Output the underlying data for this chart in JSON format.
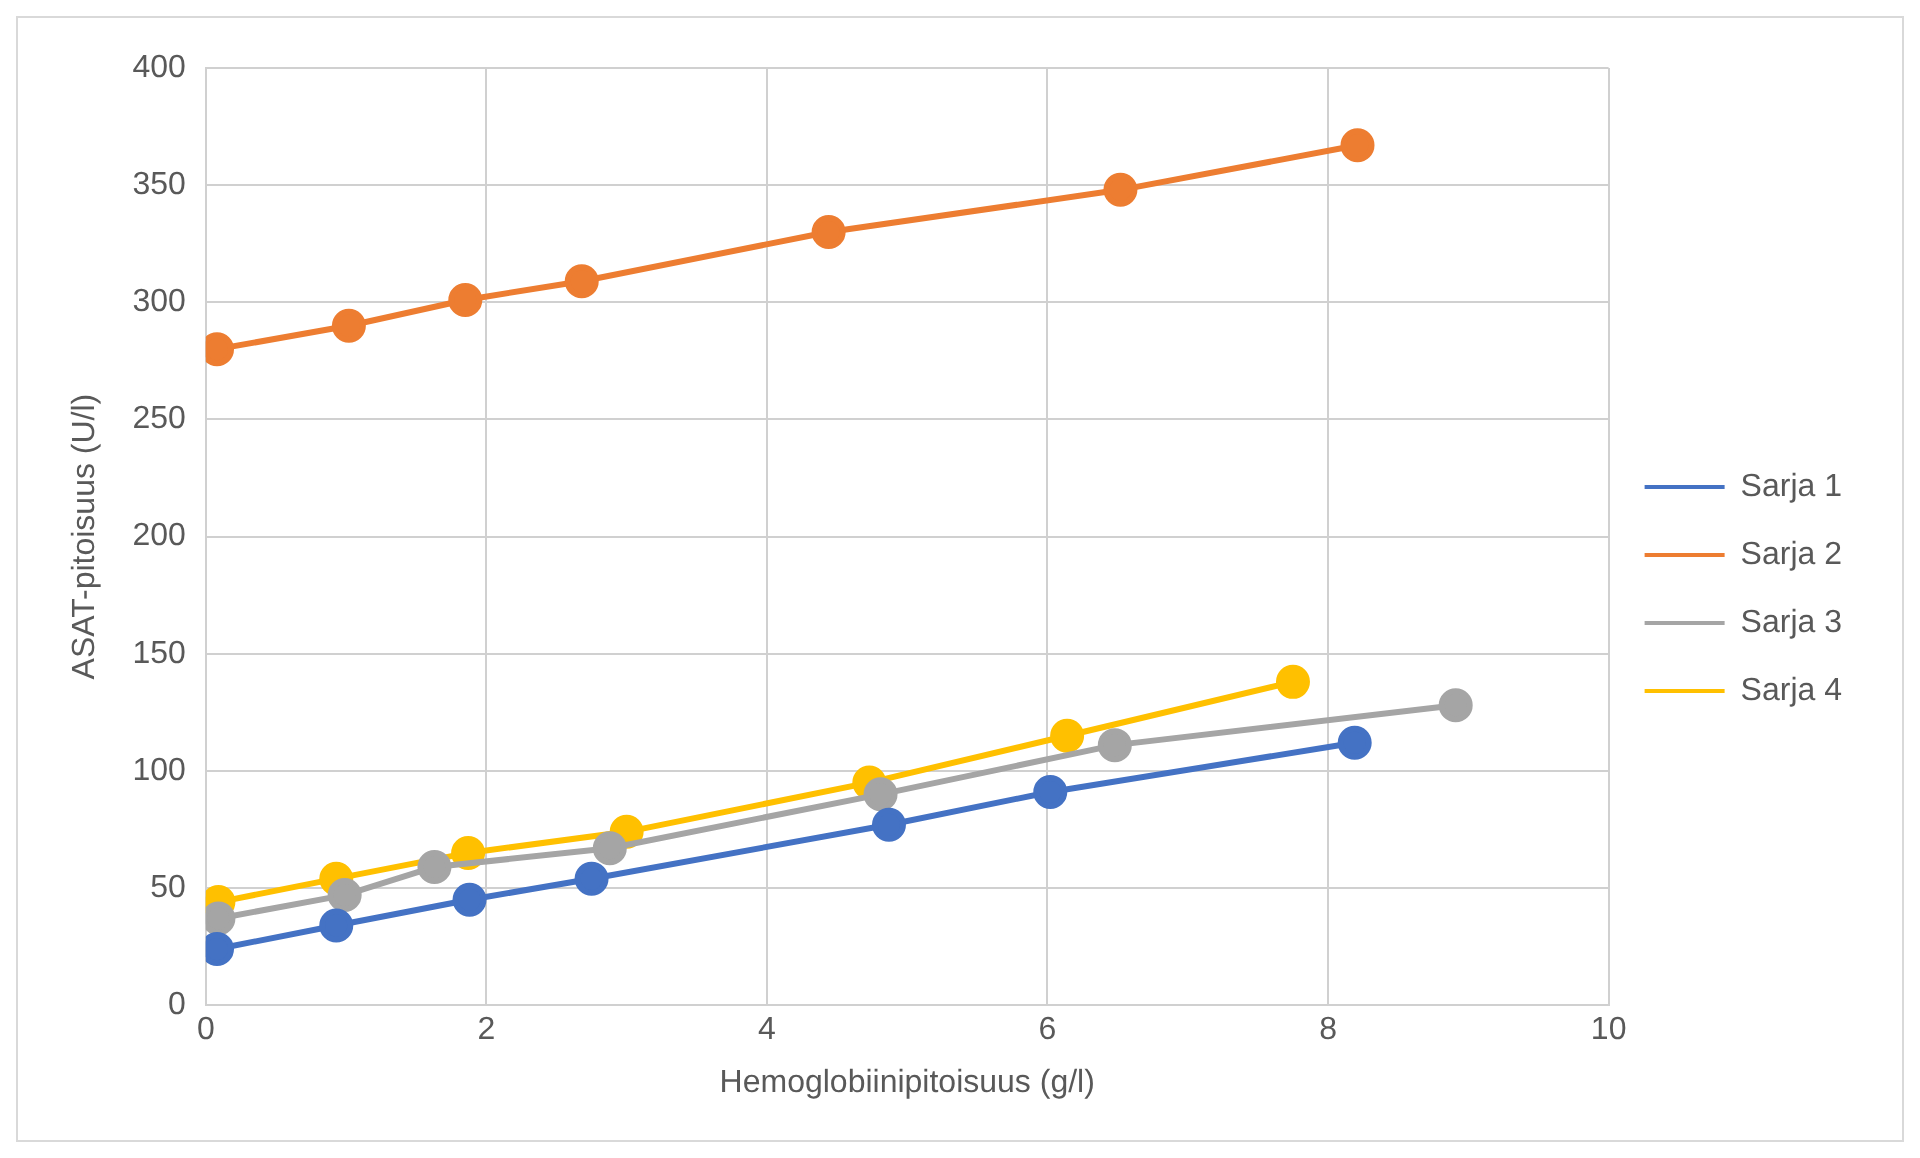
{
  "chart_data": {
    "type": "line",
    "xlabel": "Hemoglobiinipitoisuus (g/l)",
    "ylabel": "ASAT-pitoisuus (U/l)",
    "xlim": [
      0,
      10
    ],
    "xticks": [
      0,
      2,
      4,
      6,
      8,
      10
    ],
    "ylim": [
      0,
      400
    ],
    "yticks": [
      0,
      50,
      100,
      150,
      200,
      250,
      300,
      350,
      400
    ],
    "grid": true,
    "legend": "right",
    "marker": "circle",
    "line_style": "solid",
    "series": [
      {
        "name": "Sarja 1",
        "color": "#4472c4",
        "x": [
          0.08,
          0.93,
          1.88,
          2.75,
          4.87,
          6.02,
          8.19
        ],
        "values": [
          24,
          34,
          45,
          54,
          77,
          91,
          112
        ]
      },
      {
        "name": "Sarja 2",
        "color": "#ed7d31",
        "x": [
          0.08,
          1.02,
          1.85,
          2.68,
          4.44,
          6.52,
          8.21
        ],
        "values": [
          280,
          290,
          301,
          309,
          330,
          348,
          367
        ]
      },
      {
        "name": "Sarja 3",
        "color": "#a5a5a5",
        "x": [
          0.09,
          0.99,
          1.63,
          2.88,
          4.81,
          6.48,
          8.91
        ],
        "values": [
          37,
          47,
          59,
          67,
          90,
          111,
          128
        ]
      },
      {
        "name": "Sarja 4",
        "color": "#ffc000",
        "x": [
          0.09,
          0.93,
          1.87,
          3.0,
          4.73,
          6.14,
          7.75
        ],
        "values": [
          44,
          54,
          65,
          74,
          95,
          115,
          138
        ]
      }
    ]
  }
}
